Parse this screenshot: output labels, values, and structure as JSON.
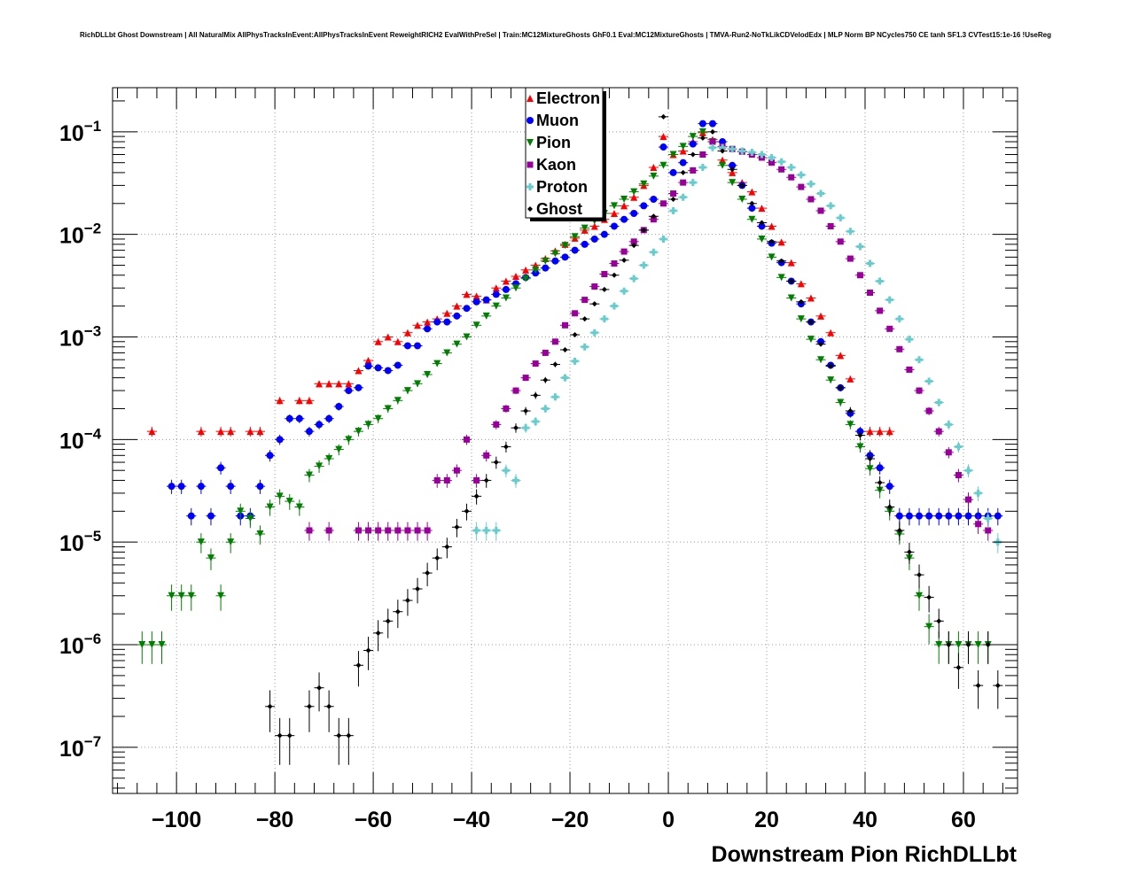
{
  "chart_data": {
    "type": "scatter",
    "title": "RichDLLbt Ghost Downstream | All NaturalMix AllPhysTracksInEvent:AllPhysTracksInEvent ReweightRICH2 EvalWithPreSel | Train:MC12MixtureGhosts GhF0.1 Eval:MC12MixtureGhosts | TMVA-Run2-NoTkLikCDVelodEdx | MLP Norm BP NCycles750 CE tanh SF1.3 CVTest15:1e-16 !UseReg",
    "xlabel": "Downstream Pion RichDLLbt",
    "ylabel": "",
    "xlim": [
      -113,
      71
    ],
    "ylim_log10": [
      -7.45,
      -0.57
    ],
    "y_scale": "log",
    "grid": true,
    "x_tick_labels": [
      "−100",
      "−80",
      "−60",
      "−40",
      "−20",
      "0",
      "20",
      "40",
      "60"
    ],
    "x_tick_values": [
      -100,
      -80,
      -60,
      -40,
      -20,
      0,
      20,
      40,
      60
    ],
    "y_tick_labels": [
      {
        "base": "10",
        "exp": "−1",
        "log": -1
      },
      {
        "base": "10",
        "exp": "−2",
        "log": -2
      },
      {
        "base": "10",
        "exp": "−3",
        "log": -3
      },
      {
        "base": "10",
        "exp": "−4",
        "log": -4
      },
      {
        "base": "10",
        "exp": "−5",
        "log": -5
      },
      {
        "base": "10",
        "exp": "−6",
        "log": -6
      },
      {
        "base": "10",
        "exp": "−7",
        "log": -7
      }
    ],
    "legend_position": "top-center",
    "series": [
      {
        "name": "Electron",
        "color": "#ff0000",
        "marker": "triangle-up",
        "x": [
          -105,
          -95,
          -91,
          -89,
          -85,
          -83,
          -79,
          -75,
          -73,
          -71,
          -69,
          -67,
          -65,
          -63,
          -61,
          -59,
          -57,
          -55,
          -53,
          -51,
          -49,
          -47,
          -45,
          -43,
          -41,
          -39,
          -37,
          -35,
          -33,
          -31,
          -29,
          -27,
          -25,
          -23,
          -21,
          -19,
          -17,
          -15,
          -13,
          -11,
          -9,
          -7,
          -5,
          -3,
          -1,
          1,
          3,
          5,
          7,
          9,
          11,
          13,
          15,
          17,
          19,
          21,
          23,
          25,
          27,
          29,
          31,
          33,
          35,
          37,
          41,
          43,
          45
        ],
        "y": [
          0.00012,
          0.00012,
          0.00012,
          0.00012,
          0.00012,
          0.00012,
          0.00024,
          0.00024,
          0.00024,
          0.00035,
          0.00035,
          0.00035,
          0.00035,
          0.00047,
          0.00059,
          0.0009,
          0.001,
          0.0009,
          0.0011,
          0.0013,
          0.0014,
          0.0015,
          0.0017,
          0.002,
          0.0026,
          0.0025,
          0.0023,
          0.003,
          0.0035,
          0.0039,
          0.0045,
          0.005,
          0.0058,
          0.0069,
          0.008,
          0.0092,
          0.011,
          0.012,
          0.014,
          0.016,
          0.019,
          0.023,
          0.03,
          0.045,
          0.09,
          0.06,
          0.065,
          0.08,
          0.098,
          0.084,
          0.053,
          0.04,
          0.032,
          0.026,
          0.018,
          0.012,
          0.0084,
          0.0053,
          0.0033,
          0.0024,
          0.0016,
          0.0011,
          0.00066,
          0.00039,
          0.00012,
          0.00012,
          0.00012
        ]
      },
      {
        "name": "Muon",
        "color": "#0000ff",
        "marker": "circle",
        "x": [
          -101,
          -99,
          -97,
          -95,
          -93,
          -91,
          -89,
          -87,
          -85,
          -83,
          -81,
          -79,
          -77,
          -75,
          -73,
          -71,
          -69,
          -67,
          -65,
          -63,
          -61,
          -59,
          -57,
          -55,
          -53,
          -51,
          -49,
          -47,
          -45,
          -43,
          -41,
          -39,
          -37,
          -35,
          -33,
          -31,
          -29,
          -27,
          -25,
          -23,
          -21,
          -19,
          -17,
          -15,
          -13,
          -11,
          -9,
          -7,
          -5,
          -3,
          -1,
          1,
          3,
          5,
          7,
          9,
          11,
          13,
          15,
          17,
          19,
          21,
          23,
          25,
          27,
          29,
          31,
          33,
          35,
          37,
          39,
          41,
          43,
          45,
          47,
          49,
          51,
          53,
          55,
          57,
          59,
          61,
          63,
          65,
          67
        ],
        "y": [
          3.5e-05,
          3.5e-05,
          1.8e-05,
          3.5e-05,
          1.8e-05,
          5.3e-05,
          3.5e-05,
          1.8e-05,
          1.8e-05,
          3.5e-05,
          7e-05,
          0.0001,
          0.00016,
          0.00016,
          0.00012,
          0.00014,
          0.00016,
          0.00021,
          0.0003,
          0.00032,
          0.00052,
          0.0005,
          0.00047,
          0.00053,
          0.00082,
          0.00082,
          0.0012,
          0.0014,
          0.0014,
          0.0016,
          0.0019,
          0.0022,
          0.0023,
          0.0026,
          0.0029,
          0.0033,
          0.0038,
          0.0042,
          0.0047,
          0.0055,
          0.006,
          0.007,
          0.008,
          0.009,
          0.01,
          0.012,
          0.014,
          0.016,
          0.019,
          0.022,
          0.071,
          0.04,
          0.05,
          0.076,
          0.12,
          0.12,
          0.08,
          0.047,
          0.03,
          0.018,
          0.012,
          0.0082,
          0.0053,
          0.0035,
          0.0021,
          0.0014,
          0.0009,
          0.00053,
          0.00032,
          0.00018,
          0.00012,
          7e-05,
          5.3e-05,
          3.5e-05,
          1.8e-05,
          1.8e-05,
          1.8e-05,
          1.8e-05,
          1.8e-05,
          1.8e-05,
          1.8e-05,
          1.8e-05,
          1.8e-05,
          1.8e-05,
          1.8e-05
        ]
      },
      {
        "name": "Pion",
        "color": "#008000",
        "marker": "triangle-down",
        "x": [
          -107,
          -105,
          -103,
          -101,
          -99,
          -97,
          -95,
          -93,
          -91,
          -89,
          -87,
          -85,
          -83,
          -81,
          -79,
          -77,
          -75,
          -73,
          -71,
          -69,
          -67,
          -65,
          -63,
          -61,
          -59,
          -57,
          -55,
          -53,
          -51,
          -49,
          -47,
          -45,
          -43,
          -41,
          -39,
          -37,
          -35,
          -33,
          -31,
          -29,
          -27,
          -25,
          -23,
          -21,
          -19,
          -17,
          -15,
          -13,
          -11,
          -9,
          -7,
          -5,
          -3,
          -1,
          1,
          3,
          5,
          7,
          9,
          11,
          13,
          15,
          17,
          19,
          21,
          23,
          25,
          27,
          29,
          31,
          33,
          35,
          37,
          39,
          41,
          43,
          45,
          47,
          49,
          51,
          53,
          55,
          57,
          59,
          61,
          63,
          65
        ],
        "y": [
          1e-06,
          1e-06,
          1e-06,
          3e-06,
          3e-06,
          3e-06,
          1e-05,
          7e-06,
          3e-06,
          1e-05,
          2e-05,
          1.7e-05,
          1.2e-05,
          2.2e-05,
          2.8e-05,
          2.5e-05,
          2.2e-05,
          4.5e-05,
          5.5e-05,
          6.5e-05,
          8e-05,
          0.0001,
          0.00012,
          0.00014,
          0.00016,
          0.0002,
          0.00024,
          0.0003,
          0.00035,
          0.00043,
          0.00055,
          0.0007,
          0.00085,
          0.001,
          0.0013,
          0.0016,
          0.002,
          0.0024,
          0.003,
          0.0037,
          0.0045,
          0.0055,
          0.0065,
          0.0078,
          0.0095,
          0.0115,
          0.0135,
          0.016,
          0.019,
          0.022,
          0.026,
          0.031,
          0.037,
          0.047,
          0.06,
          0.072,
          0.09,
          0.1,
          0.08,
          0.047,
          0.032,
          0.022,
          0.014,
          0.009,
          0.006,
          0.0038,
          0.0024,
          0.0015,
          0.00095,
          0.0006,
          0.00038,
          0.00023,
          0.00014,
          8.5e-05,
          5.2e-05,
          3.2e-05,
          2e-05,
          1.2e-05,
          7e-06,
          3e-06,
          1.5e-06,
          1e-06,
          1e-06,
          1e-06,
          1e-06,
          1e-06,
          1e-06
        ]
      },
      {
        "name": "Kaon",
        "color": "#990099",
        "marker": "square",
        "x": [
          -73,
          -69,
          -63,
          -61,
          -59,
          -57,
          -55,
          -53,
          -51,
          -49,
          -47,
          -45,
          -43,
          -41,
          -39,
          -37,
          -35,
          -33,
          -31,
          -29,
          -27,
          -25,
          -23,
          -21,
          -19,
          -17,
          -15,
          -13,
          -11,
          -9,
          -7,
          -5,
          -3,
          -1,
          1,
          3,
          5,
          7,
          9,
          11,
          13,
          15,
          17,
          19,
          21,
          23,
          25,
          27,
          29,
          31,
          33,
          35,
          37,
          39,
          41,
          43,
          45,
          47,
          49,
          51,
          53,
          55,
          57,
          59,
          61,
          63,
          65
        ],
        "y": [
          1.3e-05,
          1.3e-05,
          1.3e-05,
          1.3e-05,
          1.3e-05,
          1.3e-05,
          1.3e-05,
          1.3e-05,
          1.3e-05,
          1.3e-05,
          4e-05,
          4e-05,
          5e-05,
          0.0001,
          4e-05,
          7e-05,
          0.00014,
          0.0002,
          0.0003,
          0.0004,
          0.00055,
          0.0007,
          0.0009,
          0.0013,
          0.0017,
          0.0023,
          0.0031,
          0.0041,
          0.0052,
          0.0068,
          0.0085,
          0.011,
          0.014,
          0.02,
          0.025,
          0.032,
          0.042,
          0.06,
          0.08,
          0.072,
          0.068,
          0.064,
          0.06,
          0.056,
          0.05,
          0.043,
          0.036,
          0.029,
          0.022,
          0.017,
          0.012,
          0.0085,
          0.0058,
          0.004,
          0.0027,
          0.0018,
          0.0012,
          0.00076,
          0.00048,
          0.0003,
          0.00019,
          0.00012,
          7.5e-05,
          4.5e-05,
          2.6e-05,
          1.5e-05,
          1.3e-05
        ]
      },
      {
        "name": "Proton",
        "color": "#66cccc",
        "marker": "cross",
        "x": [
          -39,
          -37,
          -35,
          -33,
          -31,
          -29,
          -27,
          -25,
          -23,
          -21,
          -19,
          -17,
          -15,
          -13,
          -11,
          -9,
          -7,
          -5,
          -3,
          -1,
          1,
          3,
          5,
          7,
          9,
          11,
          13,
          15,
          17,
          19,
          21,
          23,
          25,
          27,
          29,
          31,
          33,
          35,
          37,
          39,
          41,
          43,
          45,
          47,
          49,
          51,
          53,
          55,
          57,
          59,
          61,
          63,
          65,
          67
        ],
        "y": [
          1.3e-05,
          1.3e-05,
          1.3e-05,
          5e-05,
          4e-05,
          0.00013,
          0.00015,
          0.0002,
          0.00026,
          0.0004,
          0.00058,
          0.0008,
          0.0011,
          0.0015,
          0.002,
          0.0028,
          0.0037,
          0.005,
          0.0067,
          0.009,
          0.017,
          0.023,
          0.032,
          0.045,
          0.07,
          0.07,
          0.068,
          0.065,
          0.063,
          0.06,
          0.056,
          0.051,
          0.045,
          0.038,
          0.031,
          0.025,
          0.019,
          0.0145,
          0.0107,
          0.0076,
          0.0052,
          0.0035,
          0.0023,
          0.0015,
          0.00095,
          0.0006,
          0.00037,
          0.00023,
          0.00014,
          8.5e-05,
          5e-05,
          3e-05,
          1.7e-05,
          1e-05
        ]
      },
      {
        "name": "Ghost",
        "color": "#000000",
        "marker": "diamond",
        "x": [
          -81,
          -79,
          -77,
          -73,
          -71,
          -69,
          -67,
          -65,
          -63,
          -61,
          -59,
          -57,
          -55,
          -53,
          -51,
          -49,
          -47,
          -45,
          -43,
          -41,
          -39,
          -37,
          -35,
          -33,
          -31,
          -29,
          -27,
          -25,
          -23,
          -21,
          -19,
          -17,
          -15,
          -13,
          -11,
          -9,
          -7,
          -5,
          -3,
          -1,
          1,
          3,
          5,
          7,
          9,
          11,
          13,
          15,
          17,
          19,
          21,
          23,
          25,
          27,
          29,
          31,
          33,
          35,
          37,
          39,
          41,
          43,
          45,
          47,
          49,
          51,
          53,
          55,
          57,
          59,
          61,
          63,
          65,
          67
        ],
        "y": [
          2.5e-07,
          1.3e-07,
          1.3e-07,
          2.5e-07,
          3.8e-07,
          2.5e-07,
          1.3e-07,
          1.3e-07,
          6.3e-07,
          8.8e-07,
          1.3e-06,
          1.7e-06,
          2.1e-06,
          2.7e-06,
          3.5e-06,
          5e-06,
          7e-06,
          9e-06,
          1.4e-05,
          2e-05,
          2.8e-05,
          4e-05,
          6e-05,
          8.5e-05,
          0.00013,
          0.00019,
          0.00027,
          0.00038,
          0.00054,
          0.00075,
          0.00105,
          0.0015,
          0.0021,
          0.0029,
          0.004,
          0.0056,
          0.0078,
          0.011,
          0.015,
          0.14,
          0.022,
          0.04,
          0.06,
          0.087,
          0.1,
          0.065,
          0.043,
          0.03,
          0.02,
          0.013,
          0.0085,
          0.0055,
          0.0035,
          0.0022,
          0.0014,
          0.00085,
          0.00052,
          0.00032,
          0.00019,
          0.00011,
          6.5e-05,
          3.8e-05,
          2.2e-05,
          1.3e-05,
          8e-06,
          4.8e-06,
          2.9e-06,
          1.7e-06,
          1e-06,
          6e-07,
          1e-06,
          4e-07,
          1e-06,
          4e-07
        ]
      }
    ]
  }
}
